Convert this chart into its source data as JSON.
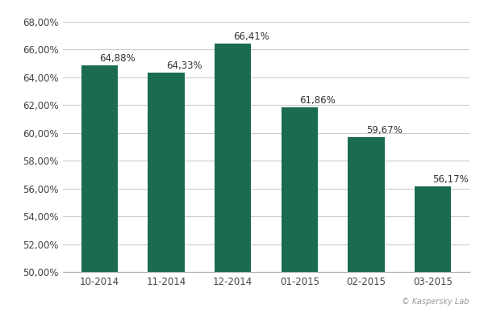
{
  "categories": [
    "10-2014",
    "11-2014",
    "12-2014",
    "01-2015",
    "02-2015",
    "03-2015"
  ],
  "values": [
    64.88,
    64.33,
    66.41,
    61.86,
    59.67,
    56.17
  ],
  "labels": [
    "64,88%",
    "64,33%",
    "66,41%",
    "61,86%",
    "59,67%",
    "56,17%"
  ],
  "bar_color": "#1a6b52",
  "background_color": "#ffffff",
  "ylim": [
    50.0,
    68.0
  ],
  "yticks": [
    50.0,
    52.0,
    54.0,
    56.0,
    58.0,
    60.0,
    62.0,
    64.0,
    66.0,
    68.0
  ],
  "ytick_labels": [
    "50,00%",
    "52,00%",
    "54,00%",
    "56,00%",
    "58,00%",
    "60,00%",
    "62,00%",
    "64,00%",
    "66,00%",
    "68,00%"
  ],
  "watermark": "© Kaspersky Lab",
  "grid_color": "#cccccc",
  "label_fontsize": 8.5,
  "tick_fontsize": 8.5,
  "watermark_fontsize": 7
}
